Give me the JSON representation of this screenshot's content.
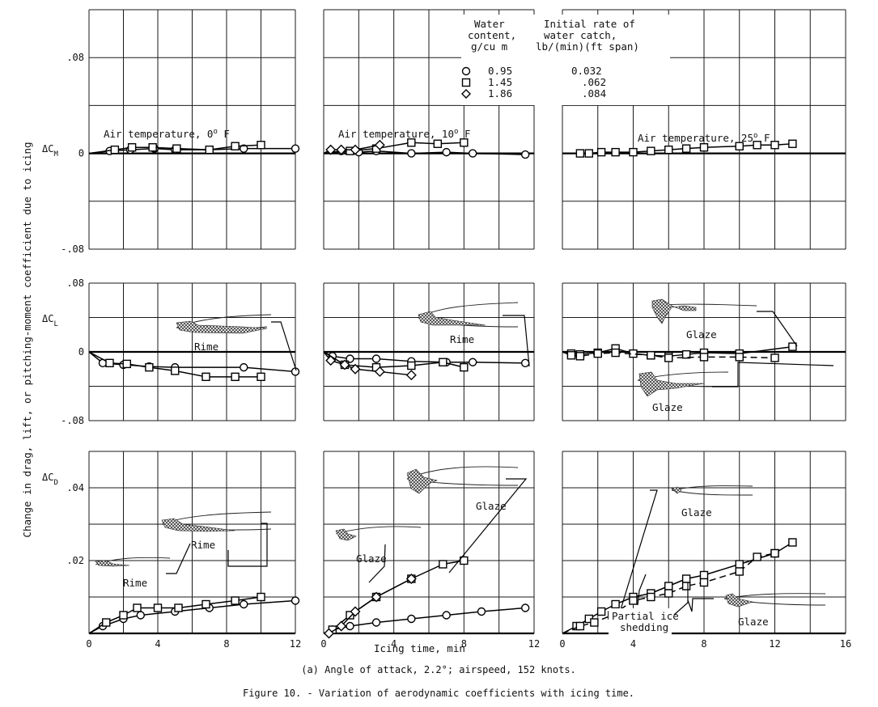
{
  "figure": {
    "y_axis_label": "Change in drag, lift, or pitching-moment coefficient due to icing",
    "x_axis_label": "Icing time, min",
    "subcaption": "(a) Angle of attack, 2.2°; airspeed, 152 knots.",
    "caption": "Figure 10. - Variation of aerodynamic coefficients with icing time.",
    "row_labels": {
      "CM": "ΔC",
      "CM_sub": "M",
      "CL": "ΔC",
      "CL_sub": "L",
      "CD": "ΔC",
      "CD_sub": "D"
    },
    "temperature_labels": [
      {
        "text": "Air temperature, 0",
        "sup": "o",
        "unit": " F"
      },
      {
        "text": "Air temperature, 10",
        "sup": "o",
        "unit": " F"
      },
      {
        "text": "Air temperature, 25",
        "sup": "o",
        "unit": " F"
      }
    ],
    "legend": {
      "header_col1": [
        "Water",
        "content,",
        "g/cu m"
      ],
      "header_col2": [
        "Initial rate of",
        "water catch,",
        "lb/(min)(ft span)"
      ],
      "rows": [
        {
          "symbol": "circle",
          "water_content": "0.95",
          "rate": "0.032"
        },
        {
          "symbol": "square",
          "water_content": "1.45",
          "rate": ".062"
        },
        {
          "symbol": "diamond",
          "water_content": "1.86",
          "rate": ".084"
        }
      ]
    },
    "annotations": {
      "cl_0F": "Rime",
      "cl_10F": "Rime",
      "cl_25F_upper": "Glaze",
      "cl_25F_lower": "Glaze",
      "cd_0F_upper": "Rime",
      "cd_0F_lower": "Rime",
      "cd_10F_upper": "Glaze",
      "cd_10F_lower": "Glaze",
      "cd_25F_upper": "Glaze",
      "cd_25F_lower": "Glaze",
      "cd_25F_shedding": [
        "Partial ice",
        "shedding"
      ]
    }
  },
  "chart_data": [
    {
      "id": "cm-0F",
      "type": "scatter",
      "title": "Air temperature, 0° F",
      "ylabel": "ΔCM",
      "ylim": [
        -0.08,
        0.12
      ],
      "xlim": [
        0,
        12
      ],
      "yticks": [
        {
          "v": 0.08,
          "label": ".08"
        },
        {
          "v": 0,
          "label": "0"
        },
        {
          "v": -0.08,
          "label": "-.08"
        }
      ],
      "xticks": [],
      "series": [
        {
          "name": "0.95",
          "marker": "circle",
          "x": [
            1.2,
            2.4,
            3.8,
            5.0,
            7.0,
            9.0,
            12.0
          ],
          "y": [
            0.002,
            0.003,
            0.004,
            0.003,
            0.003,
            0.004,
            0.004
          ]
        },
        {
          "name": "1.45",
          "marker": "square",
          "x": [
            1.5,
            2.5,
            3.7,
            5.1,
            7.0,
            8.5,
            10.0
          ],
          "y": [
            0.003,
            0.005,
            0.005,
            0.004,
            0.003,
            0.006,
            0.007
          ]
        }
      ]
    },
    {
      "id": "cm-10F",
      "type": "scatter",
      "title": "Air temperature, 10° F",
      "ylabel": "",
      "ylim": [
        -0.08,
        0.12
      ],
      "xlim": [
        0,
        12
      ],
      "yticks": [],
      "xticks": [],
      "series": [
        {
          "name": "0.95",
          "marker": "circle",
          "x": [
            1.0,
            2.0,
            3.0,
            5.0,
            7.0,
            8.5,
            11.5
          ],
          "y": [
            0.002,
            0.001,
            0.002,
            0.0,
            0.001,
            0.0,
            -0.001
          ]
        },
        {
          "name": "1.45",
          "marker": "square",
          "x": [
            1.5,
            3.0,
            5.0,
            6.5,
            8.0
          ],
          "y": [
            0.002,
            0.004,
            0.009,
            0.008,
            0.009
          ]
        },
        {
          "name": "1.86",
          "marker": "diamond",
          "x": [
            0.4,
            1.0,
            1.8,
            3.2
          ],
          "y": [
            0.003,
            0.003,
            0.003,
            0.007
          ]
        }
      ]
    },
    {
      "id": "cm-25F",
      "type": "scatter",
      "title": "Air temperature, 25° F",
      "ylabel": "",
      "ylim": [
        -0.08,
        0.12
      ],
      "xlim": [
        0,
        16
      ],
      "yticks": [],
      "xticks": [],
      "series": [
        {
          "name": "1.45",
          "marker": "square",
          "x": [
            1.0,
            1.5,
            2.2,
            3.0,
            4.0,
            5.0,
            6.0,
            7.0,
            8.0,
            10.0,
            11.0,
            12.0,
            13.0
          ],
          "y": [
            0.0,
            0.0,
            0.001,
            0.001,
            0.001,
            0.002,
            0.003,
            0.004,
            0.005,
            0.006,
            0.007,
            0.007,
            0.008
          ]
        }
      ]
    },
    {
      "id": "cl-0F",
      "type": "scatter",
      "title": "",
      "ylabel": "ΔCL",
      "ylim": [
        -0.08,
        0.08
      ],
      "xlim": [
        0,
        12
      ],
      "yticks": [
        {
          "v": 0.08,
          "label": ".08"
        },
        {
          "v": 0,
          "label": "0"
        },
        {
          "v": -0.08,
          "label": "-.08"
        }
      ],
      "xticks": [],
      "series": [
        {
          "name": "0.95",
          "marker": "circle",
          "x": [
            0.8,
            2.0,
            3.5,
            5.0,
            9.0,
            12.0
          ],
          "y": [
            -0.013,
            -0.015,
            -0.017,
            -0.018,
            -0.018,
            -0.023
          ]
        },
        {
          "name": "1.45",
          "marker": "square",
          "x": [
            1.2,
            2.2,
            3.5,
            5.0,
            6.8,
            8.5,
            10.0
          ],
          "y": [
            -0.013,
            -0.014,
            -0.018,
            -0.022,
            -0.029,
            -0.029,
            -0.029
          ]
        }
      ]
    },
    {
      "id": "cl-10F",
      "type": "scatter",
      "title": "",
      "ylabel": "",
      "ylim": [
        -0.08,
        0.08
      ],
      "xlim": [
        0,
        12
      ],
      "yticks": [],
      "xticks": [],
      "series": [
        {
          "name": "0.95",
          "marker": "circle",
          "x": [
            0.5,
            1.5,
            3.0,
            5.0,
            7.0,
            8.5,
            11.5
          ],
          "y": [
            -0.005,
            -0.008,
            -0.008,
            -0.011,
            -0.012,
            -0.012,
            -0.013
          ]
        },
        {
          "name": "1.45",
          "marker": "square",
          "x": [
            1.2,
            3.0,
            5.0,
            6.8,
            8.0
          ],
          "y": [
            -0.015,
            -0.018,
            -0.016,
            -0.012,
            -0.018
          ]
        },
        {
          "name": "1.86",
          "marker": "diamond",
          "x": [
            0.4,
            1.2,
            1.8,
            3.2,
            5.0
          ],
          "y": [
            -0.01,
            -0.015,
            -0.02,
            -0.023,
            -0.027
          ]
        }
      ]
    },
    {
      "id": "cl-25F",
      "type": "scatter",
      "title": "",
      "ylabel": "",
      "ylim": [
        -0.08,
        0.08
      ],
      "xlim": [
        0,
        16
      ],
      "yticks": [],
      "xticks": [],
      "series": [
        {
          "name": "1.45 (glaze, upper)",
          "marker": "square",
          "x": [
            0.5,
            1.0,
            2.0,
            3.0,
            4.0,
            5.0,
            6.0,
            7.0,
            8.0,
            10.0,
            13.0
          ],
          "y": [
            -0.002,
            -0.003,
            -0.001,
            0.004,
            -0.002,
            -0.004,
            -0.005,
            -0.003,
            -0.001,
            -0.002,
            0.006
          ]
        },
        {
          "name": "1.45 (glaze, lower)",
          "marker": "square",
          "x": [
            0.5,
            1.0,
            2.0,
            3.0,
            5.0,
            6.0,
            8.0,
            10.0,
            12.0
          ],
          "y": [
            -0.004,
            -0.005,
            -0.002,
            -0.001,
            -0.004,
            -0.007,
            -0.006,
            -0.006,
            -0.007
          ],
          "dashed": true
        }
      ]
    },
    {
      "id": "cd-0F",
      "type": "scatter",
      "title": "",
      "ylabel": "ΔCD",
      "ylim": [
        0,
        0.05
      ],
      "xlim": [
        0,
        12
      ],
      "yticks": [
        {
          "v": 0.04,
          "label": ".04"
        },
        {
          "v": 0.02,
          "label": ".02"
        }
      ],
      "xticks": [
        {
          "v": 0,
          "label": "0"
        },
        {
          "v": 4,
          "label": "4"
        },
        {
          "v": 8,
          "label": "8"
        },
        {
          "v": 12,
          "label": "12"
        }
      ],
      "series": [
        {
          "name": "0.95",
          "marker": "circle",
          "x": [
            0.8,
            2.0,
            3.0,
            5.0,
            7.0,
            9.0,
            12.0
          ],
          "y": [
            0.002,
            0.004,
            0.005,
            0.006,
            0.007,
            0.008,
            0.009
          ]
        },
        {
          "name": "1.45",
          "marker": "square",
          "x": [
            1.0,
            2.0,
            2.8,
            4.0,
            5.2,
            6.8,
            8.5,
            10.0
          ],
          "y": [
            0.003,
            0.005,
            0.007,
            0.007,
            0.007,
            0.008,
            0.009,
            0.01
          ]
        }
      ]
    },
    {
      "id": "cd-10F",
      "type": "scatter",
      "title": "",
      "ylabel": "",
      "ylim": [
        0,
        0.05
      ],
      "xlim": [
        0,
        12
      ],
      "yticks": [],
      "xticks": [
        {
          "v": 0,
          "label": "0"
        },
        {
          "v": 4,
          "label": "4"
        },
        {
          "v": 8,
          "label": "8"
        },
        {
          "v": 12,
          "label": "12"
        }
      ],
      "series": [
        {
          "name": "0.95",
          "marker": "circle",
          "x": [
            0.5,
            1.5,
            3.0,
            5.0,
            7.0,
            9.0,
            11.5
          ],
          "y": [
            0.001,
            0.002,
            0.003,
            0.004,
            0.005,
            0.006,
            0.007
          ]
        },
        {
          "name": "1.45",
          "marker": "square",
          "x": [
            0.5,
            1.5,
            3.0,
            5.0,
            6.8,
            8.0
          ],
          "y": [
            0.001,
            0.005,
            0.01,
            0.015,
            0.019,
            0.02
          ]
        },
        {
          "name": "1.86",
          "marker": "diamond",
          "x": [
            0.3,
            1.0,
            1.8,
            3.0,
            5.0
          ],
          "y": [
            0.0,
            0.002,
            0.006,
            0.01,
            0.015
          ]
        }
      ]
    },
    {
      "id": "cd-25F",
      "type": "scatter",
      "title": "",
      "ylabel": "",
      "ylim": [
        0,
        0.05
      ],
      "xlim": [
        0,
        16
      ],
      "yticks": [],
      "xticks": [
        {
          "v": 0,
          "label": "0"
        },
        {
          "v": 4,
          "label": "4"
        },
        {
          "v": 8,
          "label": "8"
        },
        {
          "v": 12,
          "label": "12"
        },
        {
          "v": 16,
          "label": "16"
        }
      ],
      "series": [
        {
          "name": "1.45 (upper run)",
          "marker": "square",
          "x": [
            0.8,
            1.5,
            2.2,
            3.0,
            4.0,
            5.0,
            6.0,
            7.0,
            8.0,
            10.0,
            12.0,
            13.0
          ],
          "y": [
            0.002,
            0.004,
            0.006,
            0.008,
            0.01,
            0.011,
            0.013,
            0.015,
            0.016,
            0.019,
            0.022,
            0.025
          ]
        },
        {
          "name": "1.45 (lower run)",
          "marker": "square",
          "x": [
            1.0,
            1.8,
            2.8,
            4.0,
            5.0,
            6.0,
            7.0,
            8.0,
            10.0,
            11.0,
            12.0
          ],
          "y": [
            0.002,
            0.003,
            0.005,
            0.009,
            0.01,
            0.011,
            0.013,
            0.014,
            0.017,
            0.021,
            0.022
          ],
          "dashed": true
        }
      ]
    }
  ]
}
